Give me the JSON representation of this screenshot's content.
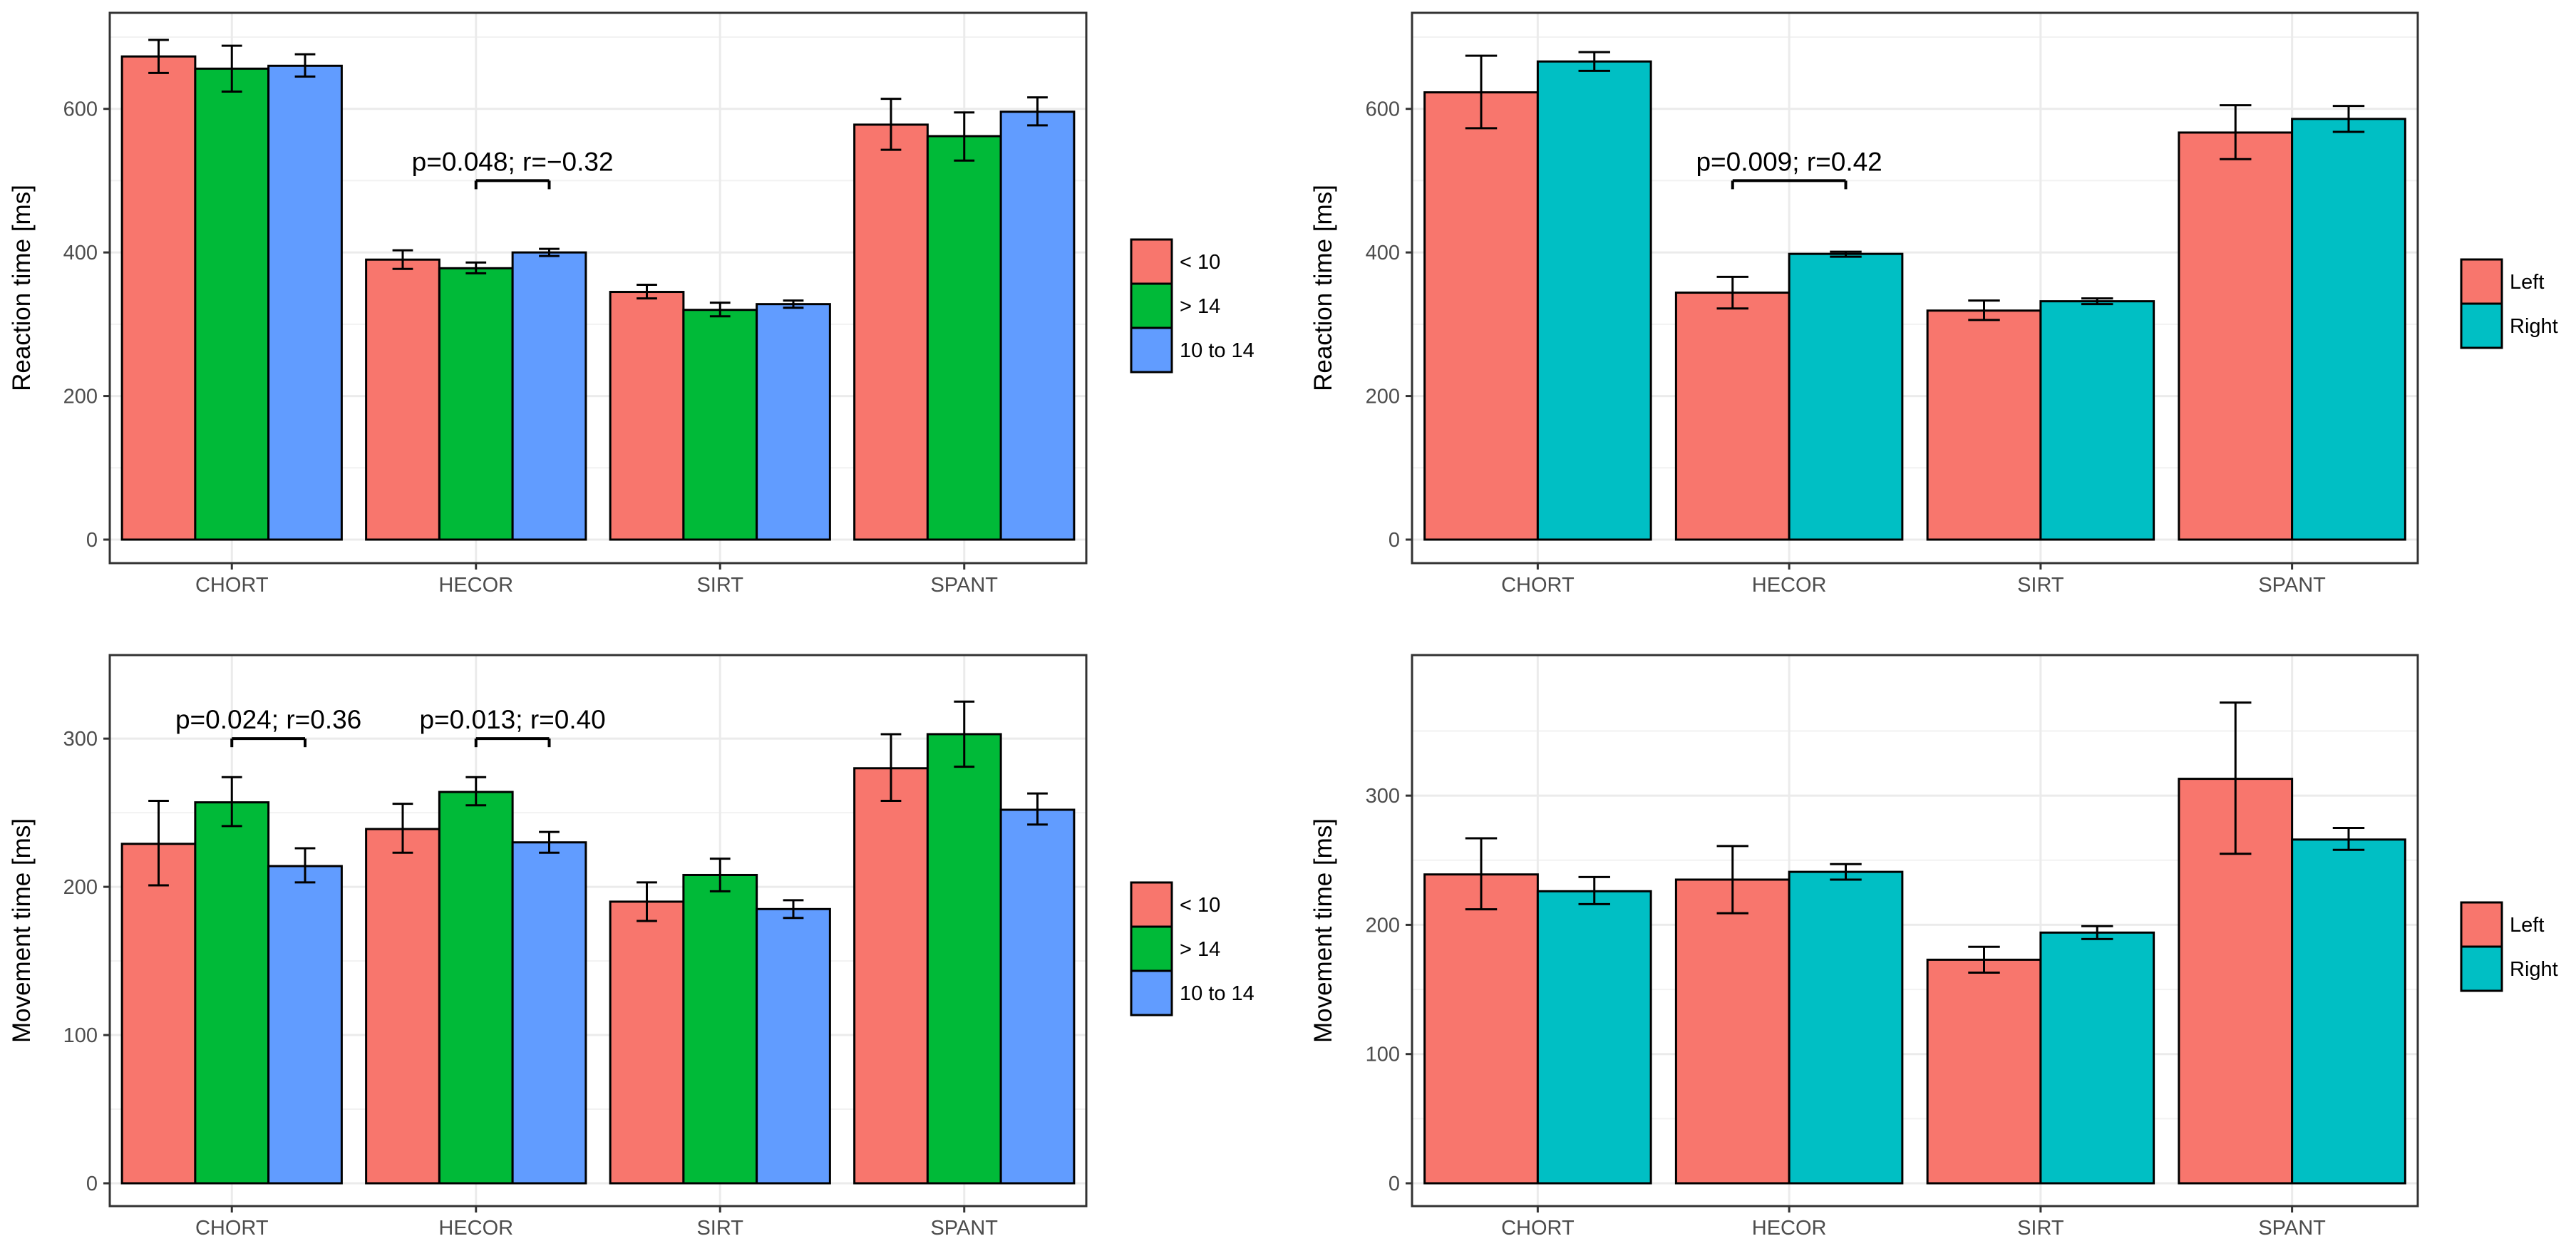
{
  "colors": {
    "lt10": "#F8766D",
    "gt14": "#00BA38",
    "10to14": "#619CFF",
    "left": "#F8766D",
    "right": "#00BFC4"
  },
  "chart_data": [
    {
      "id": "rt-age",
      "type": "bar",
      "title": "",
      "xlabel": "",
      "ylabel": "Reaction time [ms]",
      "ylim": [
        0,
        700
      ],
      "yticks": [
        0,
        200,
        400,
        600
      ],
      "grid": true,
      "legend_position": "right",
      "categories": [
        "CHORT",
        "HECOR",
        "SIRT",
        "SPANT"
      ],
      "series": [
        {
          "name": "< 10",
          "color_key": "lt10",
          "values": [
            673,
            390,
            345,
            578
          ],
          "err_low": [
            650,
            377,
            336,
            543
          ],
          "err_high": [
            696,
            403,
            355,
            614
          ]
        },
        {
          "name": "> 14",
          "color_key": "gt14",
          "values": [
            656,
            378,
            320,
            562
          ],
          "err_low": [
            624,
            371,
            311,
            528
          ],
          "err_high": [
            688,
            386,
            330,
            595
          ]
        },
        {
          "name": "10 to 14",
          "color_key": "10to14",
          "values": [
            660,
            400,
            328,
            596
          ],
          "err_low": [
            645,
            395,
            323,
            577
          ],
          "err_high": [
            676,
            405,
            333,
            616
          ]
        }
      ],
      "annotations": [
        {
          "text": "p=0.048; r=−0.32",
          "category": 1,
          "from_series": 1,
          "to_series": 2,
          "y": 500
        }
      ]
    },
    {
      "id": "rt-hand",
      "type": "bar",
      "title": "",
      "xlabel": "",
      "ylabel": "Reaction time [ms]",
      "ylim": [
        0,
        700
      ],
      "yticks": [
        0,
        200,
        400,
        600
      ],
      "grid": true,
      "legend_position": "right",
      "categories": [
        "CHORT",
        "HECOR",
        "SIRT",
        "SPANT"
      ],
      "series": [
        {
          "name": "Left",
          "color_key": "left",
          "values": [
            623,
            344,
            319,
            567
          ],
          "err_low": [
            573,
            322,
            306,
            530
          ],
          "err_high": [
            674,
            366,
            333,
            605
          ]
        },
        {
          "name": "Right",
          "color_key": "right",
          "values": [
            666,
            398,
            332,
            586
          ],
          "err_low": [
            653,
            394,
            328,
            568
          ],
          "err_high": [
            679,
            401,
            336,
            604
          ]
        }
      ],
      "annotations": [
        {
          "text": "p=0.009; r=0.42",
          "category": 1,
          "from_series": 0,
          "to_series": 1,
          "y": 500
        }
      ]
    },
    {
      "id": "mt-age",
      "type": "bar",
      "title": "",
      "xlabel": "",
      "ylabel": "Movement time [ms]",
      "ylim": [
        0,
        340
      ],
      "yticks": [
        0,
        100,
        200,
        300
      ],
      "grid": true,
      "legend_position": "right",
      "categories": [
        "CHORT",
        "HECOR",
        "SIRT",
        "SPANT"
      ],
      "series": [
        {
          "name": "< 10",
          "color_key": "lt10",
          "values": [
            229,
            239,
            190,
            280
          ],
          "err_low": [
            201,
            223,
            177,
            258
          ],
          "err_high": [
            258,
            256,
            203,
            303
          ]
        },
        {
          "name": "> 14",
          "color_key": "gt14",
          "values": [
            257,
            264,
            208,
            303
          ],
          "err_low": [
            241,
            255,
            197,
            281
          ],
          "err_high": [
            274,
            274,
            219,
            325
          ]
        },
        {
          "name": "10 to 14",
          "color_key": "10to14",
          "values": [
            214,
            230,
            185,
            252
          ],
          "err_low": [
            203,
            223,
            179,
            242
          ],
          "err_high": [
            226,
            237,
            191,
            263
          ]
        }
      ],
      "annotations": [
        {
          "text": "p=0.024; r=0.36",
          "category": 0,
          "from_series": 1,
          "to_series": 2,
          "y": 300
        },
        {
          "text": "p=0.013; r=0.40",
          "category": 1,
          "from_series": 1,
          "to_series": 2,
          "y": 300
        }
      ]
    },
    {
      "id": "mt-hand",
      "type": "bar",
      "title": "",
      "xlabel": "",
      "ylabel": "Movement time [ms]",
      "ylim": [
        0,
        390
      ],
      "yticks": [
        0,
        100,
        200,
        300
      ],
      "grid": true,
      "legend_position": "right",
      "categories": [
        "CHORT",
        "HECOR",
        "SIRT",
        "SPANT"
      ],
      "series": [
        {
          "name": "Left",
          "color_key": "left",
          "values": [
            239,
            235,
            173,
            313
          ],
          "err_low": [
            212,
            209,
            163,
            255
          ],
          "err_high": [
            267,
            261,
            183,
            372
          ]
        },
        {
          "name": "Right",
          "color_key": "right",
          "values": [
            226,
            241,
            194,
            266
          ],
          "err_low": [
            216,
            235,
            189,
            258
          ],
          "err_high": [
            237,
            247,
            199,
            275
          ]
        }
      ],
      "annotations": []
    }
  ]
}
